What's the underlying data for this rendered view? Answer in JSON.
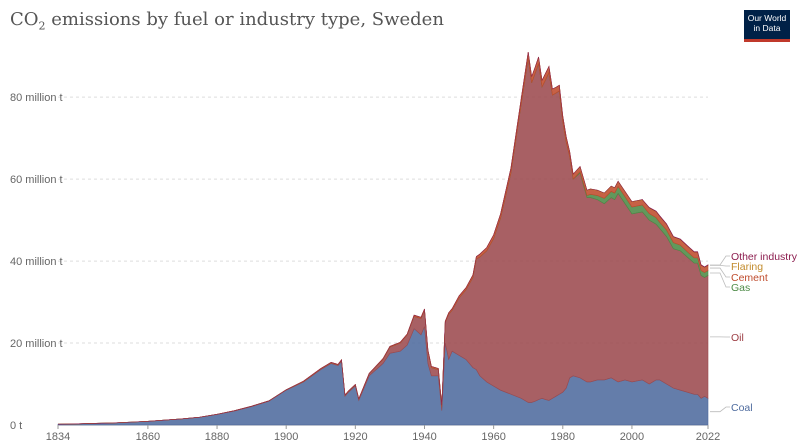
{
  "header": {
    "title_prefix": "CO",
    "title_sub": "2",
    "title_suffix": " emissions by fuel or industry type, Sweden",
    "logo_line1": "Our World",
    "logo_line2": "in Data"
  },
  "chart_data": {
    "type": "area",
    "stacked": true,
    "y_unit": "t",
    "ylim": [
      0,
      92000000
    ],
    "xlim": [
      1834,
      2022
    ],
    "y_ticks": [
      {
        "value": 0,
        "label": "0 t"
      },
      {
        "value": 20000000,
        "label": "20 million t"
      },
      {
        "value": 40000000,
        "label": "40 million t"
      },
      {
        "value": 60000000,
        "label": "60 million t"
      },
      {
        "value": 80000000,
        "label": "80 million t"
      }
    ],
    "x_ticks": [
      "1834",
      "1860",
      "1880",
      "1900",
      "1920",
      "1940",
      "1960",
      "1980",
      "2000",
      "2022"
    ],
    "grid": "horizontal dashed",
    "legend": "right, inline labels",
    "x": [
      1834,
      1840,
      1845,
      1850,
      1855,
      1860,
      1865,
      1870,
      1875,
      1880,
      1885,
      1890,
      1895,
      1900,
      1905,
      1910,
      1913,
      1915,
      1916,
      1917,
      1918,
      1920,
      1921,
      1924,
      1928,
      1930,
      1933,
      1935,
      1937,
      1939,
      1940,
      1941,
      1942,
      1944,
      1945,
      1946,
      1947,
      1948,
      1950,
      1952,
      1954,
      1955,
      1956,
      1958,
      1960,
      1962,
      1965,
      1968,
      1970,
      1971,
      1972,
      1973,
      1974,
      1975,
      1976,
      1977,
      1978,
      1979,
      1980,
      1981,
      1982,
      1983,
      1985,
      1987,
      1988,
      1990,
      1992,
      1994,
      1995,
      1996,
      1998,
      2000,
      2003,
      2005,
      2007,
      2008,
      2010,
      2012,
      2014,
      2016,
      2018,
      2019,
      2020,
      2021,
      2022
    ],
    "series": [
      {
        "name": "Coal",
        "color": "#4e6b9e",
        "values": [
          0.2,
          0.3,
          0.4,
          0.5,
          0.7,
          0.9,
          1.2,
          1.5,
          1.9,
          2.6,
          3.4,
          4.5,
          5.8,
          8.5,
          10.5,
          13.5,
          15,
          14.5,
          15.5,
          7,
          8,
          9.5,
          6,
          12,
          15,
          17.5,
          18,
          19.5,
          23.5,
          22,
          24,
          15,
          12,
          12,
          3.5,
          20,
          16,
          18,
          17,
          16,
          14,
          13.5,
          12,
          10.5,
          9.5,
          8.5,
          7.5,
          6.5,
          5.5,
          5.5,
          5.8,
          6.2,
          6.5,
          6.2,
          6,
          6.5,
          7,
          7.5,
          8,
          9,
          11.5,
          12,
          11.5,
          10.5,
          10.5,
          11,
          11,
          11.5,
          11,
          10.5,
          11,
          10.5,
          11,
          10,
          11,
          11,
          10,
          9,
          8.5,
          8,
          7.5,
          7.5,
          6.5,
          7,
          6.5
        ]
      },
      {
        "name": "Oil",
        "color": "#9c4a4e",
        "values": [
          0,
          0,
          0,
          0,
          0,
          0,
          0,
          0,
          0,
          0,
          0.1,
          0.1,
          0.1,
          0.1,
          0.1,
          0.2,
          0.2,
          0.2,
          0.3,
          0.2,
          0.2,
          0.3,
          0.3,
          0.5,
          1,
          1.5,
          2,
          2.5,
          3,
          4,
          4,
          3,
          2,
          1.5,
          1,
          5,
          11,
          10,
          14,
          17,
          22,
          27,
          29,
          32,
          36,
          42,
          54,
          72,
          84,
          78,
          80,
          82,
          76,
          78,
          80,
          74,
          74,
          74,
          66,
          60,
          54,
          48,
          50,
          45,
          45,
          44,
          43,
          44,
          44,
          46,
          43,
          41,
          41,
          40,
          38,
          37,
          36,
          34,
          34,
          33,
          32,
          32,
          30,
          29,
          30
        ]
      },
      {
        "name": "Gas",
        "color": "#4c8a46",
        "values": [
          0,
          0,
          0,
          0,
          0,
          0,
          0,
          0,
          0,
          0,
          0,
          0,
          0,
          0,
          0,
          0,
          0,
          0,
          0,
          0,
          0,
          0,
          0,
          0,
          0,
          0,
          0,
          0,
          0,
          0,
          0,
          0,
          0,
          0,
          0,
          0,
          0,
          0,
          0,
          0,
          0,
          0,
          0,
          0,
          0,
          0,
          0,
          0,
          0,
          0,
          0,
          0,
          0,
          0,
          0,
          0,
          0,
          0,
          0,
          0,
          0,
          0,
          0.3,
          0.5,
          0.8,
          1,
          1.3,
          1.5,
          1.6,
          1.7,
          1.7,
          1.7,
          1.7,
          1.6,
          1.6,
          1.5,
          1.6,
          1.5,
          1.4,
          1.3,
          1.3,
          1.3,
          1.2,
          1.2,
          1.2
        ]
      },
      {
        "name": "Cement",
        "color": "#bf4b2c",
        "values": [
          0,
          0,
          0,
          0,
          0,
          0,
          0,
          0,
          0,
          0,
          0,
          0,
          0,
          0,
          0.1,
          0.1,
          0.1,
          0.1,
          0.1,
          0.1,
          0.1,
          0.1,
          0.1,
          0.1,
          0.2,
          0.2,
          0.2,
          0.2,
          0.3,
          0.3,
          0.3,
          0.3,
          0.3,
          0.3,
          0.3,
          0.3,
          0.4,
          0.4,
          0.5,
          0.5,
          0.6,
          0.6,
          0.7,
          0.8,
          0.9,
          1,
          1.2,
          1.3,
          1.5,
          1.5,
          1.5,
          1.6,
          1.6,
          1.6,
          1.5,
          1.5,
          1.4,
          1.4,
          1.4,
          1.3,
          1.2,
          1.2,
          1.2,
          1.2,
          1.2,
          1.2,
          1.2,
          1.2,
          1.2,
          1.2,
          1.2,
          1.2,
          1.2,
          1.3,
          1.4,
          1.4,
          1.3,
          1.3,
          1.3,
          1.3,
          1.3,
          1.3,
          1.2,
          1.2,
          1.2
        ]
      },
      {
        "name": "Flaring",
        "color": "#c28b2b",
        "values": [
          0,
          0,
          0,
          0,
          0,
          0,
          0,
          0,
          0,
          0,
          0,
          0,
          0,
          0,
          0,
          0,
          0,
          0,
          0,
          0,
          0,
          0,
          0,
          0,
          0,
          0,
          0,
          0,
          0,
          0,
          0,
          0,
          0,
          0,
          0,
          0,
          0,
          0,
          0,
          0,
          0,
          0,
          0,
          0,
          0,
          0,
          0,
          0,
          0,
          0,
          0,
          0,
          0,
          0,
          0,
          0,
          0,
          0,
          0,
          0,
          0,
          0,
          0.1,
          0.1,
          0.1,
          0.1,
          0.1,
          0.1,
          0.1,
          0.1,
          0.1,
          0.1,
          0.1,
          0.1,
          0.1,
          0.1,
          0.1,
          0.1,
          0.1,
          0.1,
          0.1,
          0.1,
          0.1,
          0.1,
          0.1
        ]
      },
      {
        "name": "Other industry",
        "color": "#8c1c4e",
        "values": [
          0,
          0,
          0,
          0,
          0,
          0,
          0,
          0,
          0,
          0,
          0,
          0,
          0,
          0,
          0,
          0,
          0,
          0,
          0,
          0,
          0,
          0,
          0,
          0,
          0,
          0,
          0,
          0,
          0,
          0,
          0,
          0,
          0,
          0,
          0,
          0,
          0,
          0,
          0,
          0,
          0,
          0,
          0,
          0,
          0,
          0,
          0,
          0,
          0,
          0,
          0,
          0,
          0,
          0,
          0,
          0,
          0,
          0,
          0,
          0,
          0,
          0,
          0,
          0,
          0,
          0,
          0,
          0,
          0,
          0,
          0,
          0,
          0,
          0.1,
          0.1,
          0.1,
          0.1,
          0.1,
          0.1,
          0.1,
          0.1,
          0.1,
          0.1,
          0.1,
          0.1
        ]
      }
    ],
    "values_unit_note": "values in million t"
  }
}
